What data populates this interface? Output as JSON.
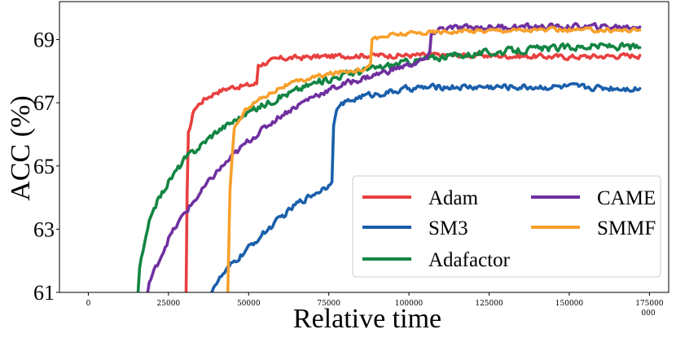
{
  "chart_data": {
    "type": "line",
    "title": "",
    "xlabel": "Relative time",
    "ylabel": "ACC (%)",
    "x_offset_label": "000",
    "xlim": [
      -9000,
      181000
    ],
    "ylim": [
      61,
      70.2
    ],
    "x_ticks": [
      0,
      25000,
      50000,
      75000,
      100000,
      125000,
      150000,
      175000
    ],
    "x_tick_labels": [
      "0",
      "25000",
      "50000",
      "75000",
      "100000",
      "125000",
      "150000",
      "175000"
    ],
    "y_ticks": [
      61,
      63,
      65,
      67,
      69
    ],
    "y_tick_labels": [
      "61",
      "63",
      "65",
      "67",
      "69"
    ],
    "legend_position": "lower-right",
    "series": [
      {
        "name": "Adam",
        "color": "#e8403f",
        "noise": 0.12,
        "x": [
          30500,
          30800,
          31200,
          33000,
          36000,
          40000,
          45000,
          50000,
          52500,
          53000,
          60000,
          70000,
          85000,
          100000,
          120000,
          150000,
          172000
        ],
        "y": [
          61,
          64.0,
          66.0,
          66.8,
          67.1,
          67.35,
          67.5,
          67.55,
          67.6,
          68.2,
          68.4,
          68.45,
          68.5,
          68.5,
          68.5,
          68.45,
          68.5
        ]
      },
      {
        "name": "SM3",
        "color": "#1a5fab",
        "noise": 0.14,
        "x": [
          38500,
          39000,
          45000,
          55000,
          65000,
          75000,
          76000,
          76500,
          78000,
          85000,
          95000,
          100000,
          110000,
          130000,
          150000,
          172000
        ],
        "y": [
          61,
          61.2,
          61.9,
          62.9,
          63.8,
          64.4,
          64.6,
          66.4,
          66.9,
          67.2,
          67.35,
          67.45,
          67.5,
          67.5,
          67.5,
          67.45
        ]
      },
      {
        "name": "Adafactor",
        "color": "#138543",
        "noise": 0.16,
        "x": [
          15500,
          16000,
          20000,
          25000,
          30000,
          40000,
          50000,
          60000,
          70000,
          80000,
          90000,
          100000,
          110000,
          120000,
          140000,
          160000,
          172000
        ],
        "y": [
          61,
          61.8,
          63.6,
          64.5,
          65.2,
          66.1,
          66.7,
          67.2,
          67.6,
          67.9,
          68.1,
          68.3,
          68.45,
          68.55,
          68.7,
          68.8,
          68.75
        ]
      },
      {
        "name": "CAME",
        "color": "#7030a0",
        "noise": 0.14,
        "x": [
          18500,
          19000,
          25000,
          30000,
          40000,
          50000,
          60000,
          70000,
          80000,
          90000,
          100000,
          105000,
          106500,
          107000,
          110000,
          130000,
          150000,
          172000
        ],
        "y": [
          61,
          61.3,
          62.7,
          63.5,
          64.8,
          65.8,
          66.6,
          67.2,
          67.6,
          67.9,
          68.2,
          68.35,
          68.5,
          69.2,
          69.35,
          69.4,
          69.4,
          69.4
        ]
      },
      {
        "name": "SMMF",
        "color": "#f8a02c",
        "noise": 0.1,
        "x": [
          43500,
          44200,
          45500,
          50000,
          60000,
          70000,
          80000,
          87000,
          88000,
          88500,
          95000,
          110000,
          130000,
          150000,
          172000
        ],
        "y": [
          61,
          64.2,
          66.2,
          66.9,
          67.5,
          67.8,
          68.0,
          68.1,
          68.3,
          69.0,
          69.15,
          69.25,
          69.3,
          69.3,
          69.3
        ]
      }
    ]
  }
}
